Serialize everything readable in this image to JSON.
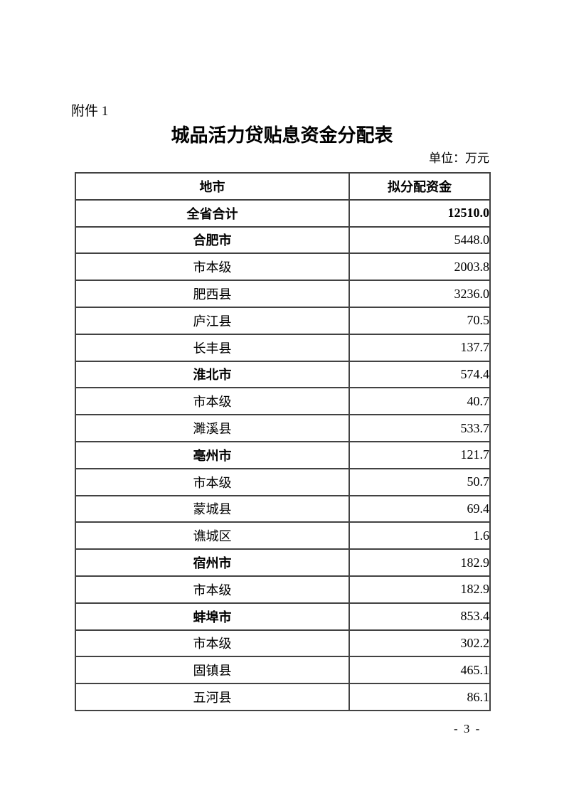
{
  "page": {
    "attachment_label": "附件 1",
    "title": "城品活力贷贴息资金分配表",
    "unit_label": "单位：万元",
    "page_number": "- 3 -"
  },
  "table": {
    "header": {
      "region": "地市",
      "amount": "拟分配资金"
    },
    "rows": [
      {
        "region": "全省合计",
        "amount": "12510.0",
        "style": "total"
      },
      {
        "region": "合肥市",
        "amount": "5448.0",
        "style": "city"
      },
      {
        "region": "市本级",
        "amount": "2003.8",
        "style": "sub"
      },
      {
        "region": "肥西县",
        "amount": "3236.0",
        "style": "sub"
      },
      {
        "region": "庐江县",
        "amount": "70.5",
        "style": "sub"
      },
      {
        "region": "长丰县",
        "amount": "137.7",
        "style": "sub"
      },
      {
        "region": "淮北市",
        "amount": "574.4",
        "style": "city"
      },
      {
        "region": "市本级",
        "amount": "40.7",
        "style": "sub"
      },
      {
        "region": "濉溪县",
        "amount": "533.7",
        "style": "sub"
      },
      {
        "region": "亳州市",
        "amount": "121.7",
        "style": "city"
      },
      {
        "region": "市本级",
        "amount": "50.7",
        "style": "sub"
      },
      {
        "region": "蒙城县",
        "amount": "69.4",
        "style": "sub"
      },
      {
        "region": "谯城区",
        "amount": "1.6",
        "style": "sub"
      },
      {
        "region": "宿州市",
        "amount": "182.9",
        "style": "city"
      },
      {
        "region": "市本级",
        "amount": "182.9",
        "style": "sub"
      },
      {
        "region": "蚌埠市",
        "amount": "853.4",
        "style": "city"
      },
      {
        "region": "市本级",
        "amount": "302.2",
        "style": "sub"
      },
      {
        "region": "固镇县",
        "amount": "465.1",
        "style": "sub"
      },
      {
        "region": "五河县",
        "amount": "86.1",
        "style": "sub"
      }
    ]
  }
}
